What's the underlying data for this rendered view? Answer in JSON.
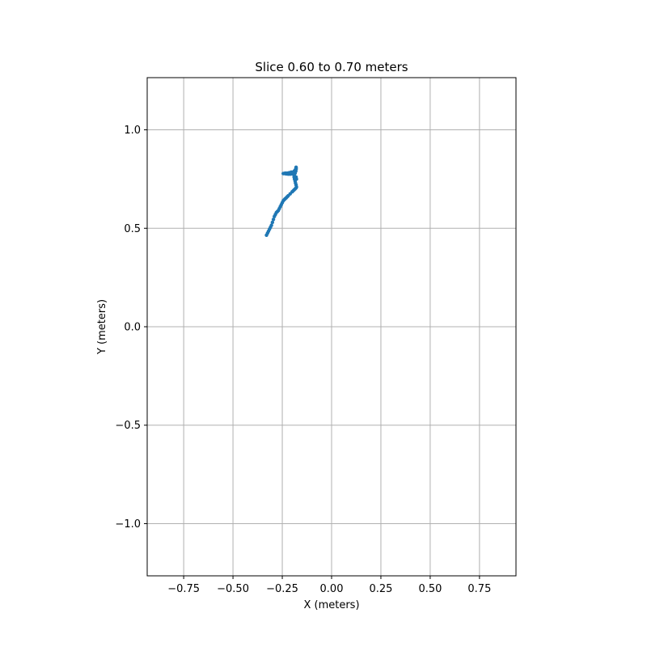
{
  "chart_data": {
    "type": "scatter",
    "title": "Slice 0.60 to 0.70 meters",
    "xlabel": "X (meters)",
    "ylabel": "Y (meters)",
    "xlim": [
      -0.935,
      0.935
    ],
    "ylim": [
      -1.265,
      1.265
    ],
    "xticks": [
      -0.75,
      -0.5,
      -0.25,
      0.0,
      0.25,
      0.5,
      0.75
    ],
    "xtick_labels": [
      "−0.75",
      "−0.50",
      "−0.25",
      "0.00",
      "0.25",
      "0.50",
      "0.75"
    ],
    "yticks": [
      -1.0,
      -0.5,
      0.0,
      0.5,
      1.0
    ],
    "ytick_labels": [
      "−1.0",
      "−0.5",
      "0.0",
      "0.5",
      "1.0"
    ],
    "grid": true,
    "marker_color": "#1f77b4",
    "series": [
      {
        "x": [
          -0.33,
          -0.325,
          -0.32,
          -0.315,
          -0.31,
          -0.305,
          -0.3,
          -0.295,
          -0.29,
          -0.285,
          -0.28,
          -0.275,
          -0.27,
          -0.265,
          -0.26,
          -0.255,
          -0.25,
          -0.245,
          -0.24,
          -0.235,
          -0.23,
          -0.225,
          -0.22,
          -0.21,
          -0.2,
          -0.195,
          -0.19,
          -0.185,
          -0.18,
          -0.178,
          -0.18,
          -0.183,
          -0.185,
          -0.188,
          -0.19,
          -0.19,
          -0.188,
          -0.185,
          -0.182,
          -0.18,
          -0.18,
          -0.182,
          -0.185,
          -0.19,
          -0.195,
          -0.2,
          -0.21,
          -0.22,
          -0.23,
          -0.24,
          -0.245,
          -0.235,
          -0.225,
          -0.215,
          -0.205,
          -0.195,
          -0.19,
          -0.185,
          -0.182,
          -0.18,
          -0.18,
          -0.178
        ],
        "y": [
          0.465,
          0.475,
          0.485,
          0.495,
          0.505,
          0.515,
          0.53,
          0.545,
          0.56,
          0.57,
          0.58,
          0.585,
          0.59,
          0.6,
          0.61,
          0.62,
          0.63,
          0.64,
          0.645,
          0.65,
          0.655,
          0.66,
          0.665,
          0.675,
          0.685,
          0.69,
          0.695,
          0.7,
          0.705,
          0.71,
          0.72,
          0.73,
          0.74,
          0.75,
          0.76,
          0.77,
          0.775,
          0.78,
          0.79,
          0.8,
          0.81,
          0.79,
          0.785,
          0.78,
          0.778,
          0.776,
          0.775,
          0.775,
          0.776,
          0.778,
          0.778,
          0.78,
          0.78,
          0.782,
          0.785,
          0.785,
          0.79,
          0.795,
          0.8,
          0.805,
          0.76,
          0.75
        ]
      }
    ]
  }
}
